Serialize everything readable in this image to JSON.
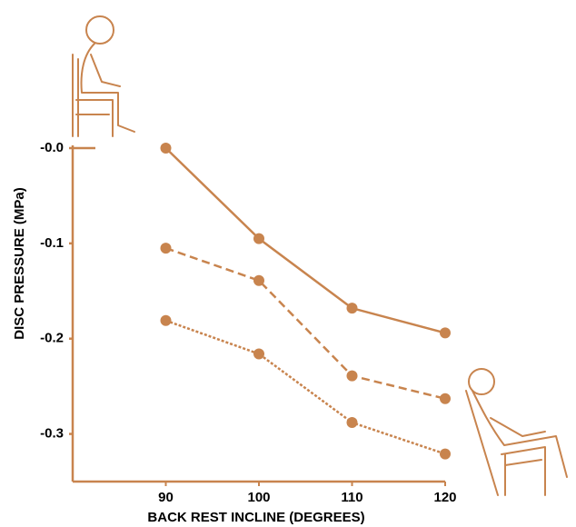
{
  "chart_data": {
    "type": "line",
    "x_label": "BACK REST INCLINE (DEGREES)",
    "y_label": "DISC PRESSURE (MPa)",
    "x": [
      90,
      100,
      110,
      120
    ],
    "series": [
      {
        "color": "#c8844e",
        "dash": "solid",
        "values": [
          0,
          -0.095,
          -0.168,
          -0.194
        ]
      },
      {
        "color": "#c8844e",
        "dash": "dashed",
        "values": [
          -0.105,
          -0.139,
          -0.239,
          -0.263
        ]
      },
      {
        "color": "#c8844e",
        "dash": "dotted",
        "values": [
          -0.181,
          -0.216,
          -0.288,
          -0.321
        ]
      }
    ],
    "xlim": [
      80,
      120
    ],
    "xticks": [
      90,
      100,
      110,
      120
    ],
    "ylim": [
      -0.35,
      0
    ],
    "yticks": [
      {
        "value": 0,
        "label": "-0.0"
      },
      -0.1,
      -0.2,
      -0.3
    ],
    "axis_color": "#c8844e"
  }
}
